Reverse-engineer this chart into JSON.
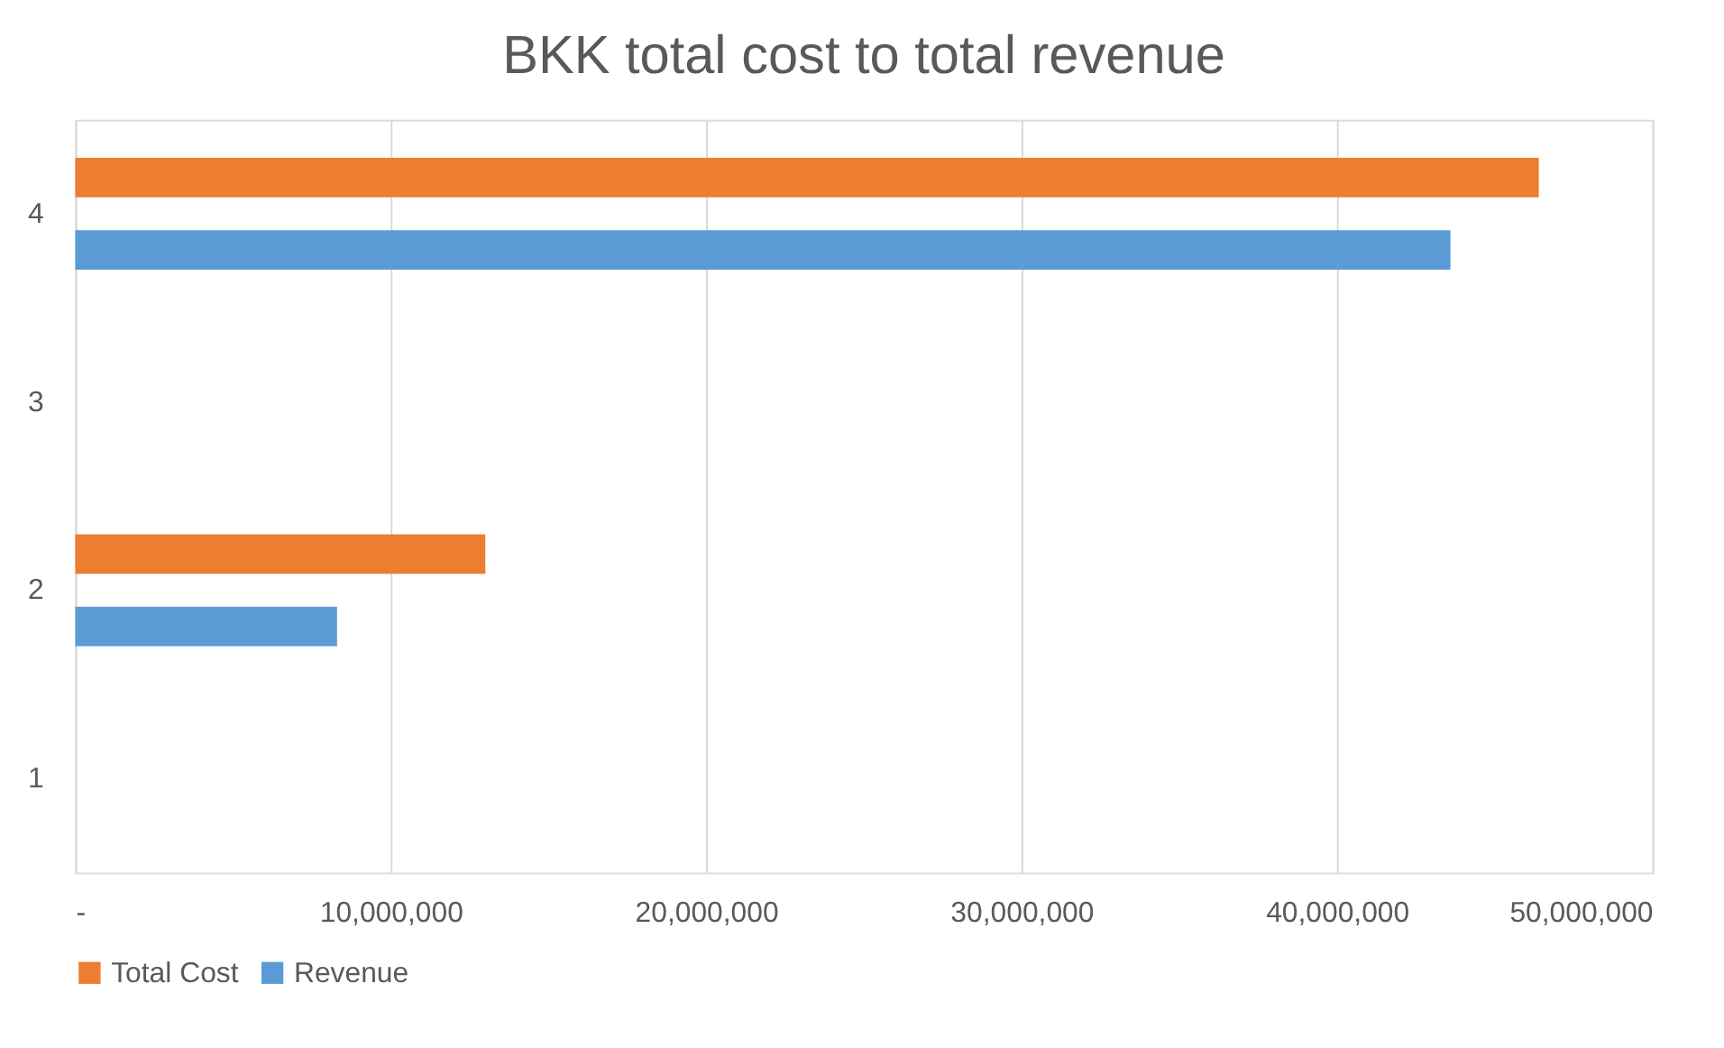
{
  "chart_data": {
    "type": "bar",
    "orientation": "horizontal",
    "title": "BKK total cost to total revenue",
    "categories": [
      "4",
      "3",
      "2",
      "1"
    ],
    "series": [
      {
        "name": "Total Cost",
        "color": "#ed7d31",
        "values": [
          46400000,
          null,
          13000000,
          null
        ]
      },
      {
        "name": "Revenue",
        "color": "#5b9bd5",
        "values": [
          43600000,
          null,
          8300000,
          null
        ]
      }
    ],
    "xlim": [
      0,
      50000000
    ],
    "xticks": [
      {
        "value": 0,
        "label": "-"
      },
      {
        "value": 10000000,
        "label": "10,000,000"
      },
      {
        "value": 20000000,
        "label": "20,000,000"
      },
      {
        "value": 30000000,
        "label": "30,000,000"
      },
      {
        "value": 40000000,
        "label": "40,000,000"
      },
      {
        "value": 50000000,
        "label": "50,000,000"
      }
    ],
    "grid": "x",
    "legend": "bottom"
  }
}
